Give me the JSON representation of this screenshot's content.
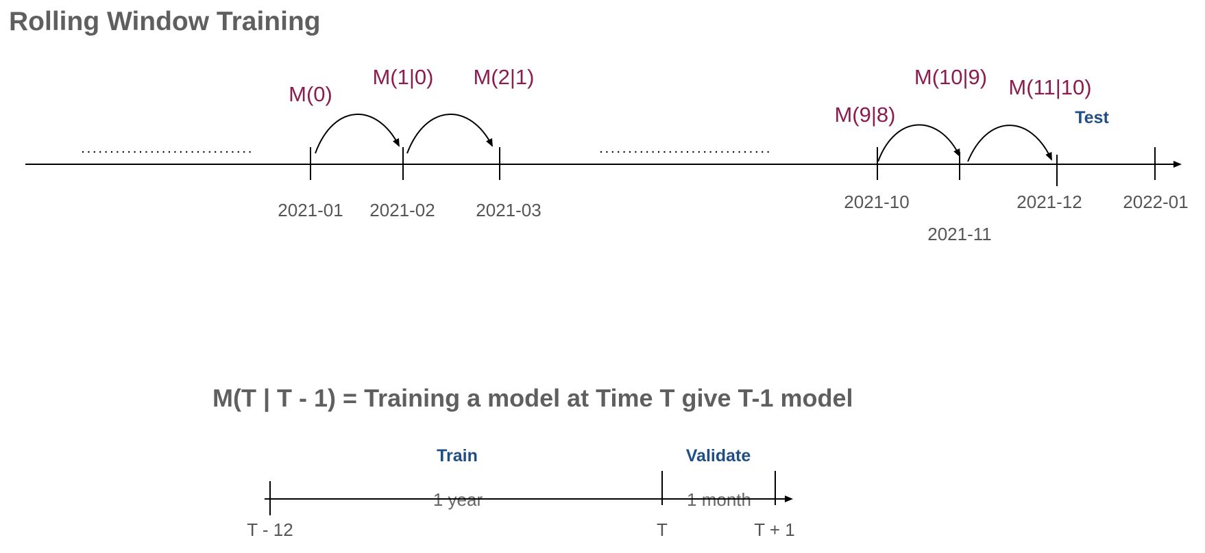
{
  "title": "Rolling Window Training",
  "timeline": {
    "dates": {
      "d2021_01": "2021-01",
      "d2021_02": "2021-02",
      "d2021_03": "2021-03",
      "d2021_10": "2021-10",
      "d2021_11": "2021-11",
      "d2021_12": "2021-12",
      "d2022_01": "2022-01"
    },
    "models": {
      "m0": "M(0)",
      "m1": "M(1|0)",
      "m2": "M(2|1)",
      "m9": "M(9|8)",
      "m10": "M(10|9)",
      "m11": "M(11|10)"
    },
    "test_label": "Test"
  },
  "definition": "M(T | T - 1) = Training a model at Time T give T-1 model",
  "window": {
    "train_label": "Train",
    "validate_label": "Validate",
    "train_duration": "1 year",
    "validate_duration": "1 month",
    "ticks": {
      "start": "T - 12",
      "mid": "T",
      "end": "T + 1"
    }
  },
  "colors": {
    "title": "#5f5f5f",
    "model_label": "#8b1c4f",
    "phase_label": "#1f4e85",
    "date_label": "#555555"
  }
}
